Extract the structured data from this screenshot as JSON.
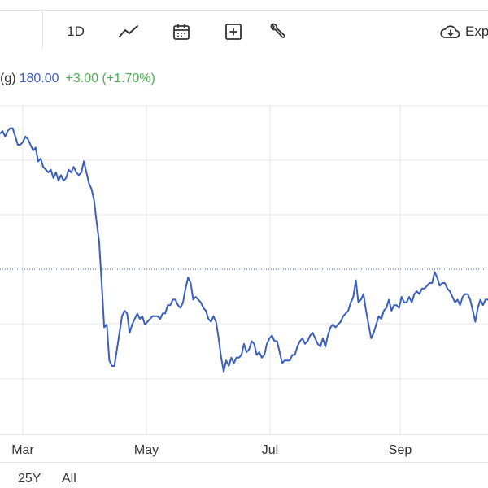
{
  "toolbar": {
    "interval_label": "1D",
    "export_label": "Exp"
  },
  "legend": {
    "symbol_fragment": "(g)",
    "price": "180.00",
    "change": "+3.00 (+1.70%)"
  },
  "colors": {
    "line": "#3b5fc0",
    "positive": "#4caf50",
    "grid": "#e6e6e6",
    "reference_line": "#3b5fc0"
  },
  "range": {
    "items": [
      "25Y",
      "All"
    ]
  },
  "chart_data": {
    "type": "line",
    "x_tick_labels": [
      "Mar",
      "May",
      "Jul",
      "Sep"
    ],
    "reference_value": 0.5,
    "series": [
      {
        "values": [
          0.94,
          0.95,
          0.93,
          0.95,
          0.96,
          0.96,
          0.93,
          0.9,
          0.9,
          0.91,
          0.93,
          0.92,
          0.9,
          0.88,
          0.89,
          0.84,
          0.85,
          0.82,
          0.81,
          0.8,
          0.81,
          0.78,
          0.8,
          0.77,
          0.79,
          0.77,
          0.78,
          0.81,
          0.8,
          0.82,
          0.8,
          0.79,
          0.8,
          0.84,
          0.8,
          0.76,
          0.74,
          0.7,
          0.62,
          0.55,
          0.4,
          0.24,
          0.25,
          0.12,
          0.1,
          0.1,
          0.16,
          0.22,
          0.28,
          0.3,
          0.29,
          0.22,
          0.25,
          0.27,
          0.29,
          0.27,
          0.28,
          0.25,
          0.26,
          0.27,
          0.28,
          0.28,
          0.28,
          0.27,
          0.29,
          0.29,
          0.32,
          0.32,
          0.34,
          0.34,
          0.32,
          0.31,
          0.33,
          0.38,
          0.42,
          0.4,
          0.34,
          0.35,
          0.34,
          0.33,
          0.31,
          0.3,
          0.27,
          0.26,
          0.28,
          0.26,
          0.2,
          0.13,
          0.08,
          0.12,
          0.1,
          0.13,
          0.11,
          0.13,
          0.13,
          0.14,
          0.18,
          0.15,
          0.16,
          0.19,
          0.18,
          0.14,
          0.15,
          0.13,
          0.14,
          0.18,
          0.2,
          0.21,
          0.19,
          0.19,
          0.15,
          0.11,
          0.12,
          0.12,
          0.12,
          0.14,
          0.14,
          0.17,
          0.19,
          0.2,
          0.18,
          0.19,
          0.21,
          0.22,
          0.2,
          0.18,
          0.17,
          0.2,
          0.17,
          0.21,
          0.24,
          0.25,
          0.24,
          0.25,
          0.26,
          0.28,
          0.29,
          0.3,
          0.33,
          0.35,
          0.41,
          0.33,
          0.34,
          0.36,
          0.3,
          0.25,
          0.2,
          0.22,
          0.25,
          0.28,
          0.27,
          0.3,
          0.31,
          0.34,
          0.3,
          0.32,
          0.32,
          0.31,
          0.35,
          0.33,
          0.33,
          0.35,
          0.33,
          0.36,
          0.37,
          0.36,
          0.38,
          0.38,
          0.39,
          0.4,
          0.4,
          0.44,
          0.42,
          0.39,
          0.4,
          0.4,
          0.38,
          0.37,
          0.35,
          0.33,
          0.34,
          0.32,
          0.35,
          0.36,
          0.36,
          0.34,
          0.3,
          0.26,
          0.31,
          0.34,
          0.32,
          0.34,
          0.34
        ]
      }
    ]
  }
}
